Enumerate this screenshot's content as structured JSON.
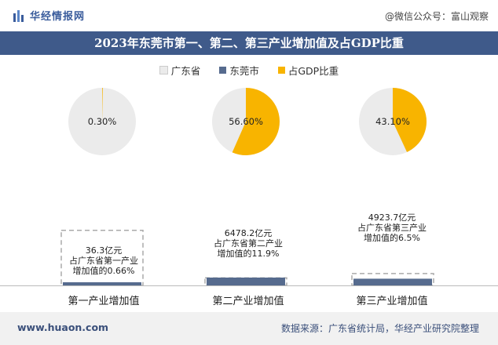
{
  "header": {
    "brand": "华经情报网",
    "wechat": "@微信公众号：富山观察"
  },
  "chart_data": {
    "type": "pie",
    "title": "2023年东莞市第一、第二、第三产业增加值及占GDP比重",
    "legend": [
      "广东省",
      "东莞市",
      "占GDP比重"
    ],
    "colors": {
      "province": "#ebebeb",
      "city": "#566b8e",
      "share": "#f8b400"
    },
    "categories": [
      "第一产业增加值",
      "第二产业增加值",
      "第三产业增加值"
    ],
    "gdp_share_percent": [
      0.3,
      56.6,
      43.1
    ],
    "gdp_share_labels": [
      "0.30%",
      "56.60%",
      "43.10%"
    ],
    "city_value_yi": [
      36.3,
      6478.2,
      4923.7
    ],
    "province_share_percent": [
      0.66,
      11.9,
      6.5
    ],
    "callouts": [
      [
        "36.3亿元",
        "占广东省第一产业",
        "增加值的0.66%"
      ],
      [
        "6478.2亿元",
        "占广东省第二产业",
        "增加值的11.9%"
      ],
      [
        "4923.7亿元",
        "占广东省第三产业",
        "增加值的6.5%"
      ]
    ]
  },
  "footer": {
    "url": "www.huaon.com",
    "source": "数据来源：广东省统计局，华经产业研究院整理"
  }
}
